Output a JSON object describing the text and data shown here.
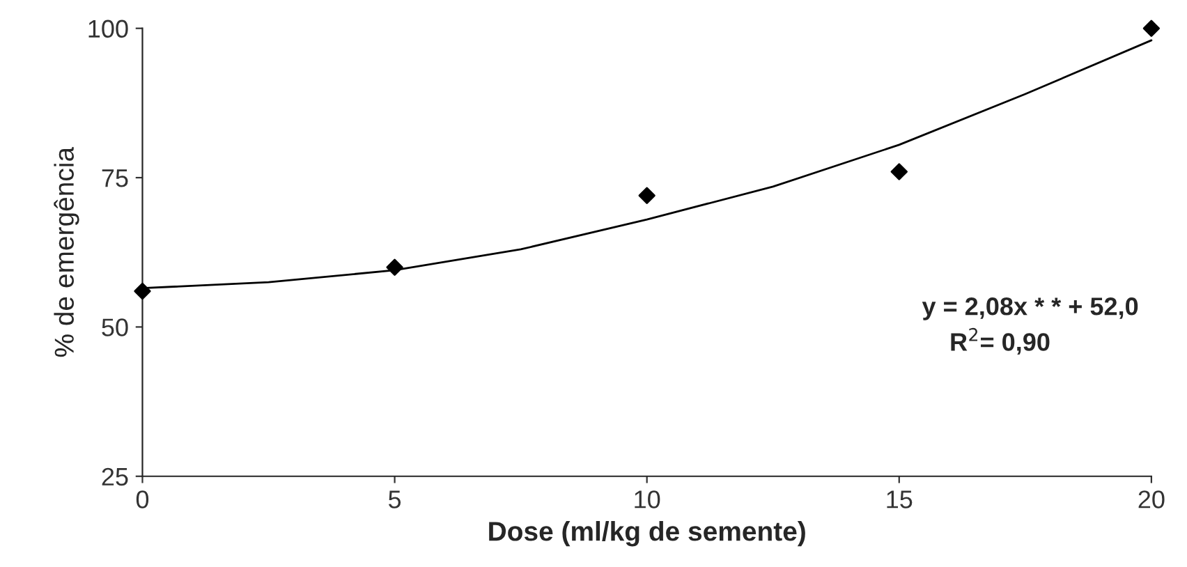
{
  "chart_data": {
    "type": "scatter",
    "xlabel": "Dose (ml/kg de semente)",
    "ylabel": "% de emergência",
    "xlim": [
      0,
      20
    ],
    "ylim": [
      25,
      100
    ],
    "xticks": [
      0,
      5,
      10,
      15,
      20
    ],
    "yticks": [
      25,
      50,
      75,
      100
    ],
    "grid": false,
    "legend": false,
    "series": [
      {
        "color": "#000000",
        "marker": "diamond",
        "x": [
          0,
          5,
          10,
          15,
          20
        ],
        "values": [
          56,
          60,
          72,
          76,
          100
        ]
      },
      {
        "type": "line",
        "color": "#000000",
        "marker": "none",
        "line_style": "solid",
        "x": [
          0,
          2.5,
          5,
          7.5,
          10,
          12.5,
          15,
          17.5,
          20
        ],
        "values": [
          56.5,
          57.5,
          59.5,
          63,
          68,
          73.5,
          80.5,
          89,
          98
        ]
      }
    ],
    "annotations": [
      "y = 2,08x * * + 52,0",
      "R$^{2}$= 0,90"
    ]
  }
}
